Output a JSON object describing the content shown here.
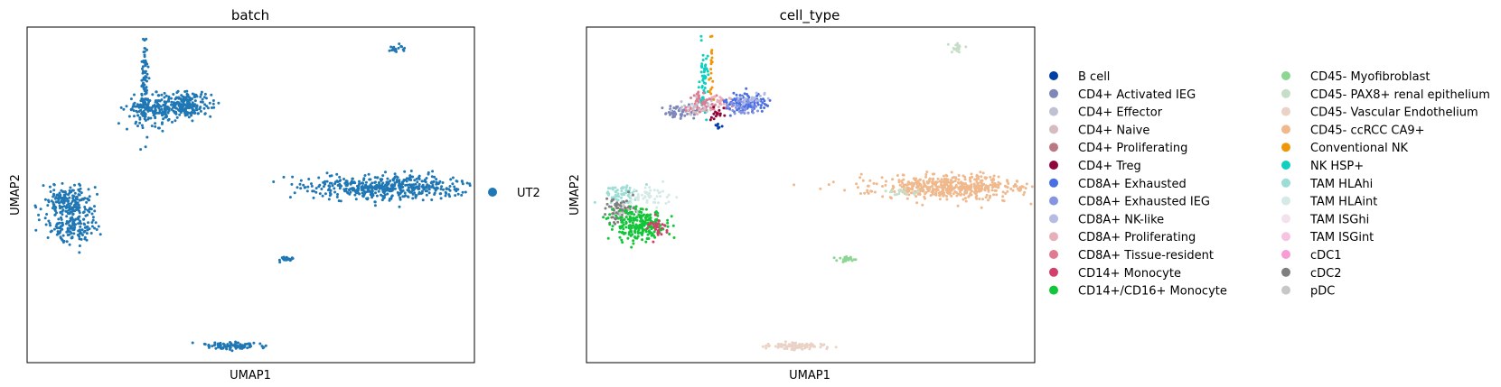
{
  "chart_data": [
    {
      "type": "scatter",
      "title": "batch",
      "xlabel": "UMAP1",
      "ylabel": "UMAP2",
      "show_ticks": false,
      "grid": false,
      "legend_placement": "right",
      "legend": [
        {
          "label": "UT2",
          "color": "#1f77b4"
        }
      ],
      "clusters": [
        {
          "category": "UT2",
          "cx": 0.2,
          "cy": 8.4,
          "sx": 0.07,
          "sy": 1.6,
          "n": 80
        },
        {
          "category": "UT2",
          "cx": 0.45,
          "cy": 6.6,
          "sx": 0.45,
          "sy": 0.45,
          "n": 180
        },
        {
          "category": "UT2",
          "cx": 1.7,
          "cy": 6.9,
          "sx": 0.45,
          "sy": 0.4,
          "n": 200
        },
        {
          "category": "UT2",
          "cx": -2.55,
          "cy": 0.5,
          "sx": 0.45,
          "sy": 0.6,
          "n": 200
        },
        {
          "category": "UT2",
          "cx": -2.25,
          "cy": -1.1,
          "sx": 0.45,
          "sy": 0.5,
          "n": 140
        },
        {
          "category": "UT2",
          "cx": 8.9,
          "cy": 1.5,
          "sx": 1.5,
          "sy": 0.4,
          "n": 500
        },
        {
          "category": "UT2",
          "cx": 3.4,
          "cy": -8.9,
          "sx": 0.55,
          "sy": 0.12,
          "n": 90
        },
        {
          "category": "UT2",
          "cx": 5.3,
          "cy": -3.2,
          "sx": 0.18,
          "sy": 0.08,
          "n": 25
        },
        {
          "category": "UT2",
          "cx": 9.2,
          "cy": 10.6,
          "sx": 0.18,
          "sy": 0.15,
          "n": 18
        }
      ],
      "xlim": [
        -4,
        12
      ],
      "ylim": [
        -10,
        12
      ]
    },
    {
      "type": "scatter",
      "title": "cell_type",
      "xlabel": "UMAP1",
      "ylabel": "UMAP2",
      "show_ticks": false,
      "grid": false,
      "legend_placement": "right",
      "legend_columns": 2,
      "legend": [
        {
          "label": "B cell",
          "color": "#023fa5"
        },
        {
          "label": "CD4+ Activated IEG",
          "color": "#7d87b9"
        },
        {
          "label": "CD4+ Effector",
          "color": "#bec1d4"
        },
        {
          "label": "CD4+ Naive",
          "color": "#d6bcc0"
        },
        {
          "label": "CD4+ Proliferating",
          "color": "#bb7784"
        },
        {
          "label": "CD4+ Treg",
          "color": "#8e063b"
        },
        {
          "label": "CD8A+ Exhausted",
          "color": "#4a6fe3"
        },
        {
          "label": "CD8A+ Exhausted IEG",
          "color": "#8595e1"
        },
        {
          "label": "CD8A+ NK-like",
          "color": "#b5bbe3"
        },
        {
          "label": "CD8A+ Proliferating",
          "color": "#e6afb9"
        },
        {
          "label": "CD8A+ Tissue-resident",
          "color": "#e07b91"
        },
        {
          "label": "CD14+ Monocyte",
          "color": "#d33f6a"
        },
        {
          "label": "CD14+/CD16+ Monocyte",
          "color": "#11c638"
        },
        {
          "label": "CD45- Myofibroblast",
          "color": "#8dd593"
        },
        {
          "label": "CD45- PAX8+ renal epithelium",
          "color": "#c6dec7"
        },
        {
          "label": "CD45- Vascular Endothelium",
          "color": "#ead3c6"
        },
        {
          "label": "CD45- ccRCC CA9+",
          "color": "#f0b98d"
        },
        {
          "label": "Conventional NK",
          "color": "#ef9708"
        },
        {
          "label": "NK HSP+",
          "color": "#0fcfc0"
        },
        {
          "label": "TAM HLAhi",
          "color": "#9cded6"
        },
        {
          "label": "TAM HLAint",
          "color": "#d5eae7"
        },
        {
          "label": "TAM ISGhi",
          "color": "#f3e1eb"
        },
        {
          "label": "TAM ISGint",
          "color": "#f6c4e1"
        },
        {
          "label": "cDC1",
          "color": "#f79cd4"
        },
        {
          "label": "cDC2",
          "color": "#7f7f7f"
        },
        {
          "label": "pDC",
          "color": "#c7c7c7"
        }
      ],
      "clusters": [
        {
          "category": "NK HSP+",
          "cx": 0.2,
          "cy": 8.4,
          "sx": 0.08,
          "sy": 1.4,
          "n": 60
        },
        {
          "category": "Conventional NK",
          "cx": 0.45,
          "cy": 9.0,
          "sx": 0.05,
          "sy": 0.9,
          "n": 20
        },
        {
          "category": "CD4+ Activated IEG",
          "cx": -0.6,
          "cy": 6.4,
          "sx": 0.3,
          "sy": 0.25,
          "n": 50
        },
        {
          "category": "CD4+ Effector",
          "cx": 0.0,
          "cy": 6.8,
          "sx": 0.4,
          "sy": 0.3,
          "n": 30
        },
        {
          "category": "CD8A+ Tissue-resident",
          "cx": 0.35,
          "cy": 7.0,
          "sx": 0.35,
          "sy": 0.4,
          "n": 60
        },
        {
          "category": "CD8A+ Proliferating",
          "cx": 0.8,
          "cy": 7.2,
          "sx": 0.2,
          "sy": 0.3,
          "n": 20
        },
        {
          "category": "CD4+ Treg",
          "cx": 0.65,
          "cy": 6.3,
          "sx": 0.15,
          "sy": 0.2,
          "n": 15
        },
        {
          "category": "CD4+ Naive",
          "cx": 0.0,
          "cy": 6.6,
          "sx": 0.2,
          "sy": 0.2,
          "n": 15
        },
        {
          "category": "CD8A+ Exhausted",
          "cx": 1.7,
          "cy": 7.0,
          "sx": 0.35,
          "sy": 0.3,
          "n": 120
        },
        {
          "category": "CD8A+ Exhausted IEG",
          "cx": 1.5,
          "cy": 6.7,
          "sx": 0.3,
          "sy": 0.25,
          "n": 40
        },
        {
          "category": "CD8A+ NK-like",
          "cx": 1.9,
          "cy": 7.3,
          "sx": 0.3,
          "sy": 0.25,
          "n": 25
        },
        {
          "category": "B cell",
          "cx": 0.7,
          "cy": 5.5,
          "sx": 0.06,
          "sy": 0.1,
          "n": 8
        },
        {
          "category": "TAM HLAhi",
          "cx": -2.7,
          "cy": 1.1,
          "sx": 0.35,
          "sy": 0.3,
          "n": 60
        },
        {
          "category": "TAM HLAint",
          "cx": -1.8,
          "cy": 0.9,
          "sx": 0.4,
          "sy": 0.3,
          "n": 50
        },
        {
          "category": "cDC2",
          "cx": -2.8,
          "cy": 0.0,
          "sx": 0.25,
          "sy": 0.4,
          "n": 70
        },
        {
          "category": "pDC",
          "cx": -2.5,
          "cy": -0.3,
          "sx": 0.25,
          "sy": 0.3,
          "n": 20
        },
        {
          "category": "CD14+/CD16+ Monocyte",
          "cx": -2.15,
          "cy": -1.0,
          "sx": 0.5,
          "sy": 0.5,
          "n": 230
        },
        {
          "category": "CD14+ Monocyte",
          "cx": -1.5,
          "cy": -1.1,
          "sx": 0.15,
          "sy": 0.35,
          "n": 30
        },
        {
          "category": "CD45- ccRCC CA9+",
          "cx": 9.0,
          "cy": 1.5,
          "sx": 1.4,
          "sy": 0.4,
          "n": 520
        },
        {
          "category": "CD45- PAX8+ renal epithelium",
          "cx": 7.3,
          "cy": 1.2,
          "sx": 0.35,
          "sy": 0.15,
          "n": 20
        },
        {
          "category": "CD45- Myofibroblast",
          "cx": 5.3,
          "cy": -3.2,
          "sx": 0.18,
          "sy": 0.08,
          "n": 25
        },
        {
          "category": "CD45- Vascular Endothelium",
          "cx": 3.4,
          "cy": -8.9,
          "sx": 0.55,
          "sy": 0.12,
          "n": 90
        },
        {
          "category": "CD45- PAX8+ renal epithelium",
          "cx": 9.2,
          "cy": 10.6,
          "sx": 0.18,
          "sy": 0.15,
          "n": 18
        }
      ],
      "xlim": [
        -4,
        12
      ],
      "ylim": [
        -10,
        12
      ]
    }
  ]
}
